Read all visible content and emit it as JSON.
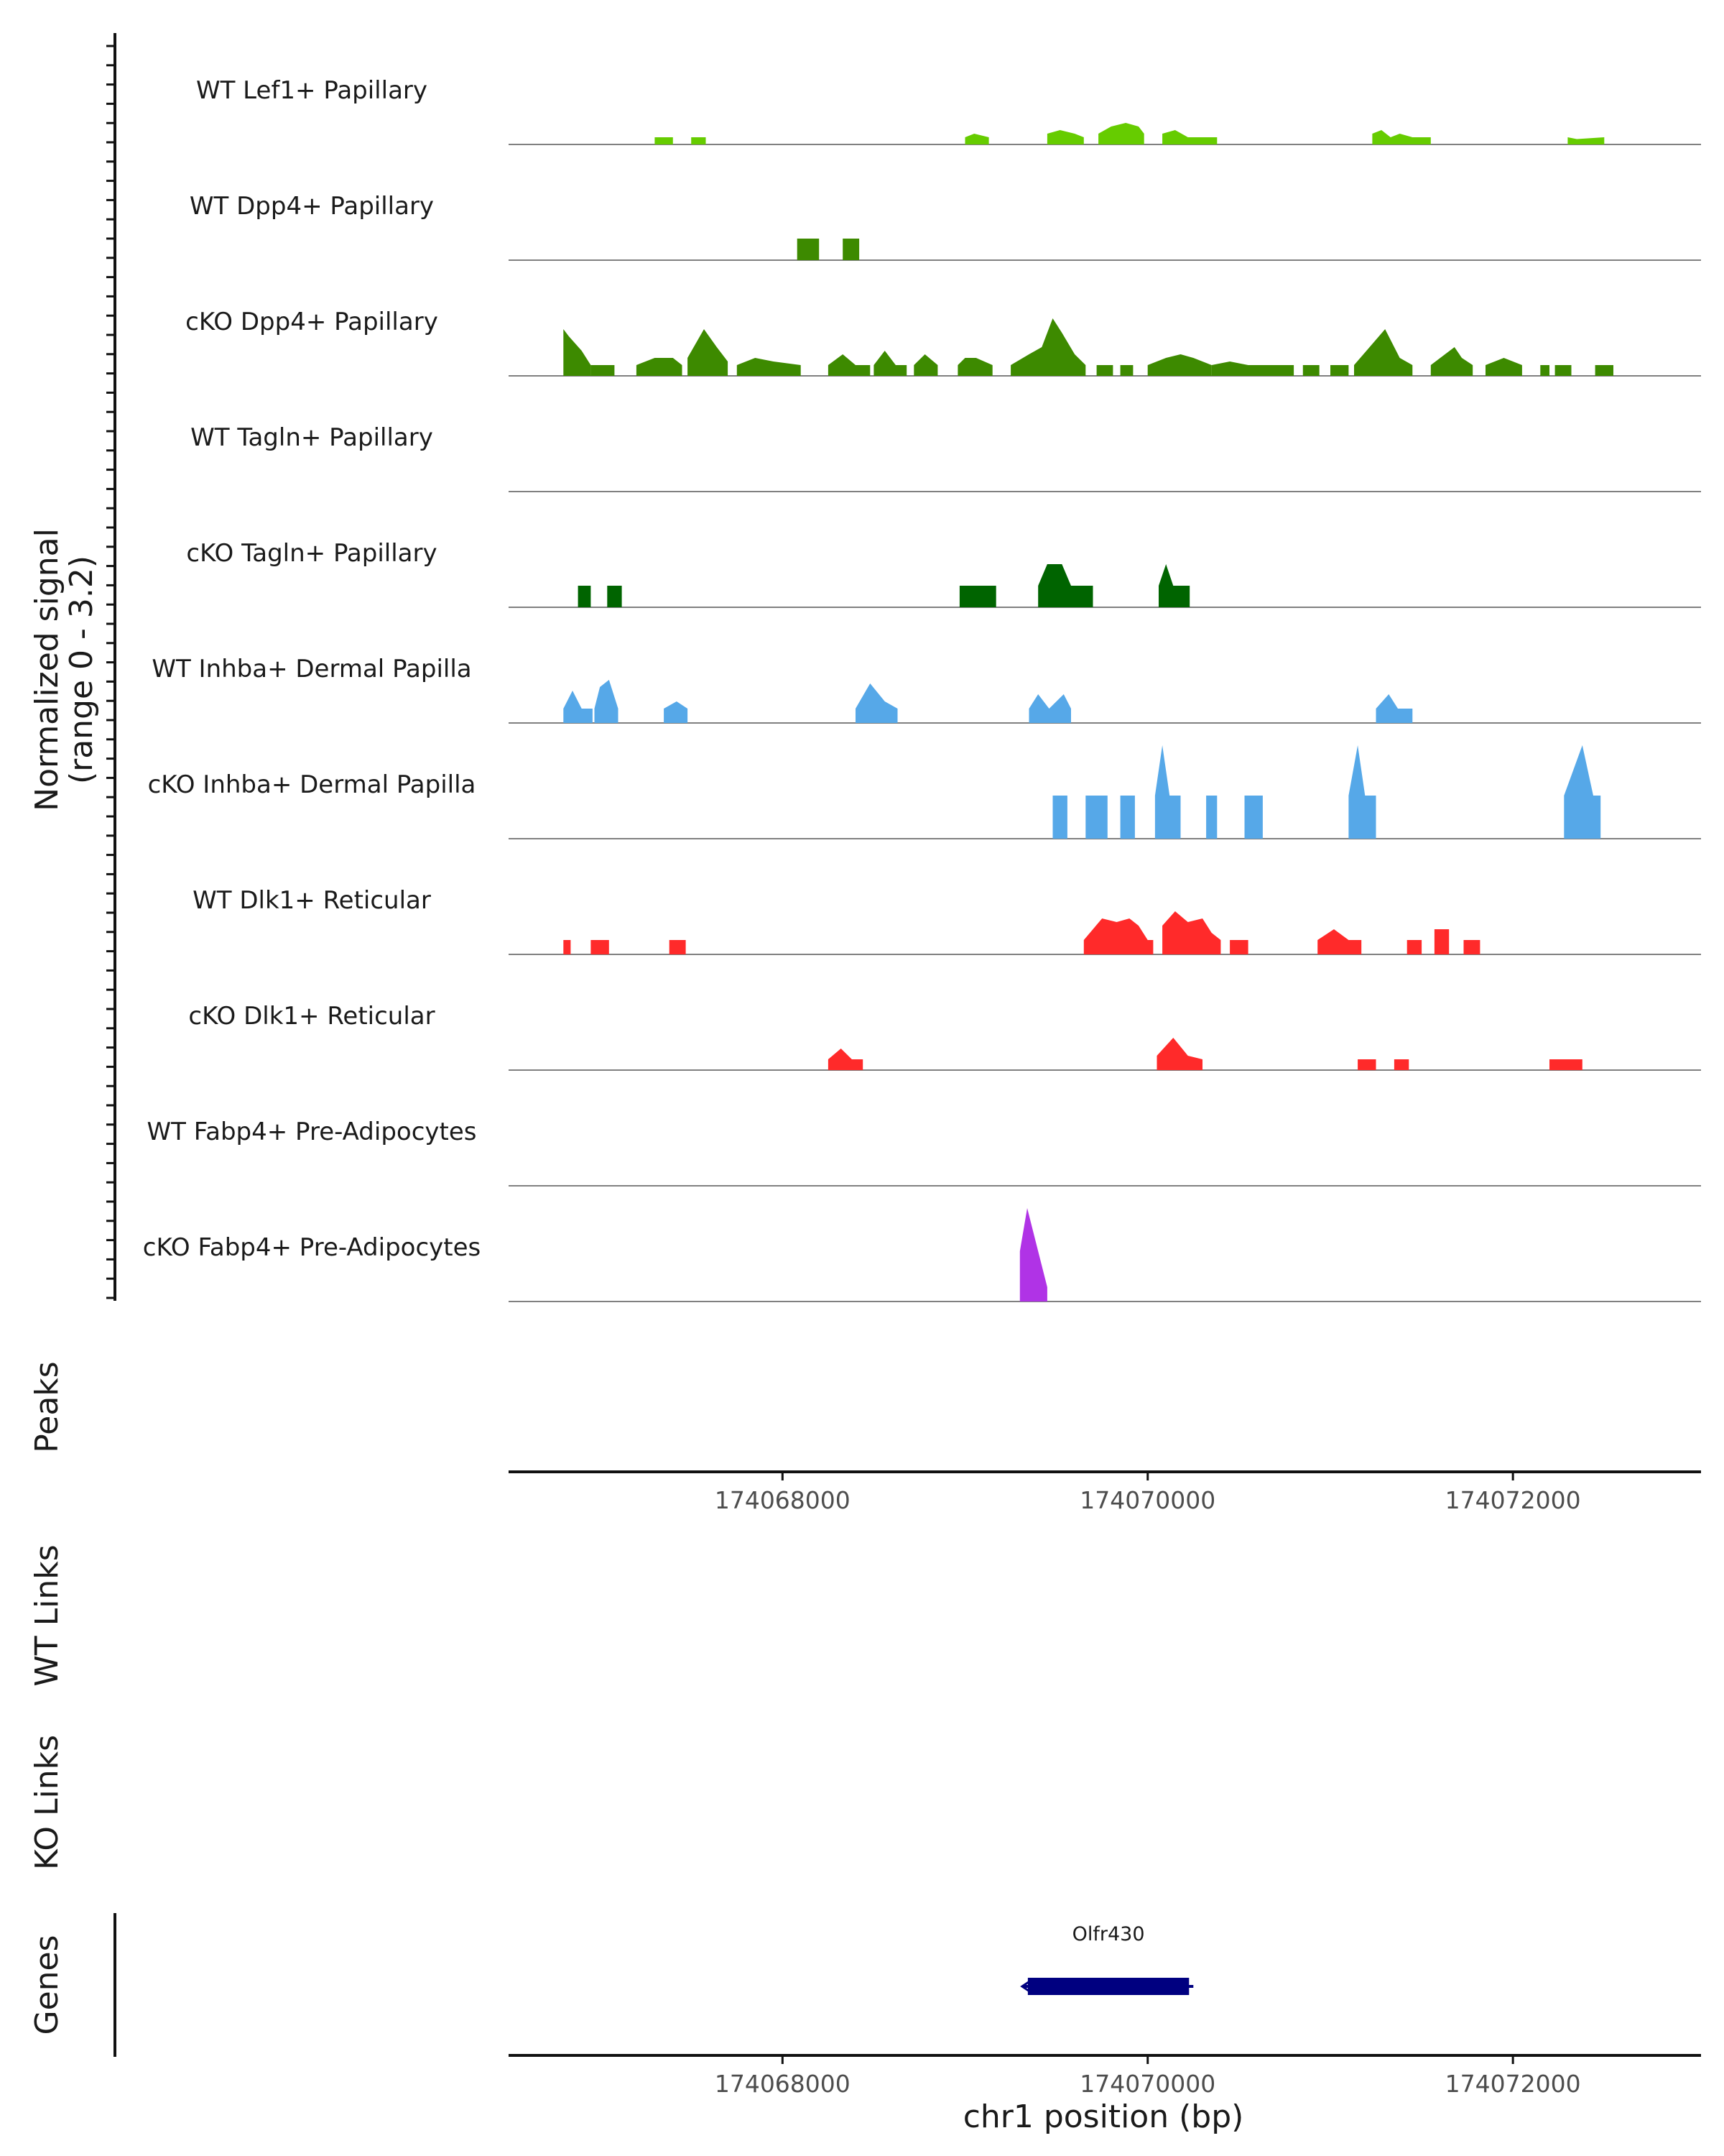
{
  "chart_data": {
    "type": "coverage",
    "xlim": [
      174066500,
      174073030
    ],
    "coverage_ylabel": [
      "Normalized signal",
      "(range 0 - 3.2)"
    ],
    "ylim": [
      0,
      3.2
    ],
    "tracks": [
      {
        "label": "WT Lef1+ Papillary",
        "color": "#66CC00",
        "segments": [
          [
            [
              174067300,
              0.2
            ],
            [
              174067400,
              0.2
            ]
          ],
          [
            [
              174067500,
              0.2
            ],
            [
              174067580,
              0.2
            ]
          ],
          [
            [
              174069000,
              0.2
            ],
            [
              174069050,
              0.3
            ],
            [
              174069130,
              0.2
            ]
          ],
          [
            [
              174069450,
              0.3
            ],
            [
              174069520,
              0.4
            ],
            [
              174069600,
              0.3
            ],
            [
              174069650,
              0.2
            ]
          ],
          [
            [
              174069730,
              0.3
            ],
            [
              174069800,
              0.5
            ],
            [
              174069880,
              0.6
            ],
            [
              174069950,
              0.5
            ],
            [
              174069980,
              0.3
            ]
          ],
          [
            [
              174070080,
              0.3
            ],
            [
              174070150,
              0.4
            ],
            [
              174070220,
              0.2
            ],
            [
              174070380,
              0.2
            ]
          ],
          [
            [
              174071230,
              0.3
            ],
            [
              174071280,
              0.4
            ],
            [
              174071330,
              0.2
            ],
            [
              174071380,
              0.3
            ],
            [
              174071450,
              0.2
            ],
            [
              174071550,
              0.2
            ]
          ],
          [
            [
              174072300,
              0.2
            ],
            [
              174072350,
              0.15
            ],
            [
              174072500,
              0.2
            ]
          ]
        ]
      },
      {
        "label": "WT Dpp4+ Papillary",
        "color": "#3D8A00",
        "segments": [
          [
            [
              174068080,
              0.6
            ],
            [
              174068200,
              0.6
            ]
          ],
          [
            [
              174068330,
              0.6
            ],
            [
              174068420,
              0.6
            ]
          ]
        ]
      },
      {
        "label": "cKO Dpp4+ Papillary",
        "color": "#3D8A00",
        "segments": [
          [
            [
              174066800,
              1.3
            ],
            [
              174066830,
              1.1
            ],
            [
              174066900,
              0.7
            ],
            [
              174066950,
              0.3
            ]
          ],
          [
            [
              174066950,
              0.3
            ],
            [
              174067080,
              0.3
            ]
          ],
          [
            [
              174067200,
              0.3
            ],
            [
              174067300,
              0.5
            ],
            [
              174067400,
              0.5
            ],
            [
              174067450,
              0.3
            ]
          ],
          [
            [
              174067480,
              0.5
            ],
            [
              174067570,
              1.3
            ],
            [
              174067640,
              0.8
            ],
            [
              174067700,
              0.4
            ]
          ],
          [
            [
              174067750,
              0.3
            ],
            [
              174067850,
              0.5
            ],
            [
              174067950,
              0.4
            ],
            [
              174068100,
              0.3
            ]
          ],
          [
            [
              174068250,
              0.3
            ],
            [
              174068330,
              0.6
            ],
            [
              174068400,
              0.3
            ],
            [
              174068480,
              0.3
            ]
          ],
          [
            [
              174068500,
              0.3
            ],
            [
              174068560,
              0.7
            ],
            [
              174068620,
              0.3
            ],
            [
              174068680,
              0.3
            ]
          ],
          [
            [
              174068720,
              0.3
            ],
            [
              174068780,
              0.6
            ],
            [
              174068850,
              0.3
            ]
          ],
          [
            [
              174068960,
              0.3
            ],
            [
              174069000,
              0.5
            ],
            [
              174069060,
              0.5
            ],
            [
              174069150,
              0.3
            ]
          ],
          [
            [
              174069250,
              0.3
            ],
            [
              174069350,
              0.6
            ],
            [
              174069420,
              0.8
            ],
            [
              174069480,
              1.6
            ],
            [
              174069530,
              1.2
            ],
            [
              174069600,
              0.6
            ],
            [
              174069660,
              0.3
            ]
          ],
          [
            [
              174069720,
              0.3
            ],
            [
              174069810,
              0.3
            ]
          ],
          [
            [
              174069850,
              0.3
            ],
            [
              174069920,
              0.3
            ]
          ],
          [
            [
              174070000,
              0.3
            ],
            [
              174070100,
              0.5
            ],
            [
              174070180,
              0.6
            ],
            [
              174070250,
              0.5
            ],
            [
              174070350,
              0.3
            ]
          ],
          [
            [
              174070350,
              0.3
            ],
            [
              174070450,
              0.4
            ],
            [
              174070550,
              0.3
            ],
            [
              174070700,
              0.3
            ],
            [
              174070800,
              0.3
            ]
          ],
          [
            [
              174070850,
              0.3
            ],
            [
              174070940,
              0.3
            ]
          ],
          [
            [
              174071000,
              0.3
            ],
            [
              174071100,
              0.3
            ]
          ],
          [
            [
              174071130,
              0.3
            ],
            [
              174071300,
              1.3
            ],
            [
              174071380,
              0.5
            ],
            [
              174071450,
              0.3
            ]
          ],
          [
            [
              174071550,
              0.3
            ],
            [
              174071680,
              0.8
            ],
            [
              174071720,
              0.5
            ],
            [
              174071780,
              0.3
            ]
          ],
          [
            [
              174071850,
              0.3
            ],
            [
              174071950,
              0.5
            ],
            [
              174072050,
              0.3
            ]
          ],
          [
            [
              174072150,
              0.3
            ],
            [
              174072200,
              0.3
            ]
          ],
          [
            [
              174072230,
              0.3
            ],
            [
              174072320,
              0.3
            ]
          ],
          [
            [
              174072450,
              0.3
            ],
            [
              174072550,
              0.3
            ]
          ]
        ]
      },
      {
        "label": "WT Tagln+ Papillary",
        "color": "#006400",
        "segments": []
      },
      {
        "label": "cKO Tagln+ Papillary",
        "color": "#006400",
        "segments": [
          [
            [
              174066880,
              0.6
            ],
            [
              174066950,
              0.6
            ]
          ],
          [
            [
              174067040,
              0.6
            ],
            [
              174067120,
              0.6
            ]
          ],
          [
            [
              174068970,
              0.6
            ],
            [
              174069170,
              0.6
            ]
          ],
          [
            [
              174069400,
              0.6
            ],
            [
              174069450,
              1.2
            ],
            [
              174069530,
              1.2
            ],
            [
              174069580,
              0.6
            ],
            [
              174069700,
              0.6
            ]
          ],
          [
            [
              174070060,
              0.6
            ],
            [
              174070100,
              1.2
            ],
            [
              174070140,
              0.6
            ],
            [
              174070230,
              0.6
            ]
          ]
        ]
      },
      {
        "label": "WT Inhba+ Dermal Papilla",
        "color": "#56A8E8",
        "segments": [
          [
            [
              174066800,
              0.4
            ],
            [
              174066850,
              0.9
            ],
            [
              174066900,
              0.4
            ],
            [
              174066960,
              0.4
            ]
          ],
          [
            [
              174066970,
              0.4
            ],
            [
              174067000,
              1.0
            ],
            [
              174067050,
              1.2
            ],
            [
              174067100,
              0.4
            ]
          ],
          [
            [
              174067350,
              0.4
            ],
            [
              174067420,
              0.6
            ],
            [
              174067480,
              0.4
            ]
          ],
          [
            [
              174068400,
              0.4
            ],
            [
              174068480,
              1.1
            ],
            [
              174068560,
              0.6
            ],
            [
              174068630,
              0.4
            ]
          ],
          [
            [
              174069350,
              0.4
            ],
            [
              174069400,
              0.8
            ],
            [
              174069460,
              0.4
            ],
            [
              174069540,
              0.8
            ],
            [
              174069580,
              0.4
            ]
          ],
          [
            [
              174071250,
              0.4
            ],
            [
              174071320,
              0.8
            ],
            [
              174071370,
              0.4
            ],
            [
              174071450,
              0.4
            ]
          ]
        ]
      },
      {
        "label": "cKO Inhba+ Dermal Papilla",
        "color": "#56A8E8",
        "segments": [
          [
            [
              174069480,
              1.2
            ],
            [
              174069560,
              1.2
            ]
          ],
          [
            [
              174069660,
              1.2
            ],
            [
              174069780,
              1.2
            ]
          ],
          [
            [
              174069850,
              1.2
            ],
            [
              174069930,
              1.2
            ]
          ],
          [
            [
              174070040,
              1.2
            ],
            [
              174070080,
              2.6
            ],
            [
              174070120,
              1.2
            ],
            [
              174070180,
              1.2
            ]
          ],
          [
            [
              174070320,
              1.2
            ],
            [
              174070380,
              1.2
            ]
          ],
          [
            [
              174070530,
              1.2
            ],
            [
              174070630,
              1.2
            ]
          ],
          [
            [
              174071100,
              1.2
            ],
            [
              174071150,
              2.6
            ],
            [
              174071190,
              1.2
            ],
            [
              174071250,
              1.2
            ]
          ],
          [
            [
              174072280,
              1.2
            ],
            [
              174072380,
              2.6
            ],
            [
              174072440,
              1.2
            ],
            [
              174072480,
              1.2
            ]
          ]
        ]
      },
      {
        "label": "WT Dlk1+ Reticular",
        "color": "#FF2A2A",
        "segments": [
          [
            [
              174066800,
              0.4
            ],
            [
              174066840,
              0.4
            ]
          ],
          [
            [
              174066950,
              0.4
            ],
            [
              174067050,
              0.4
            ]
          ],
          [
            [
              174067380,
              0.4
            ],
            [
              174067470,
              0.4
            ]
          ],
          [
            [
              174069650,
              0.4
            ],
            [
              174069750,
              1.0
            ],
            [
              174069830,
              0.9
            ],
            [
              174069900,
              1.0
            ],
            [
              174069950,
              0.8
            ],
            [
              174070000,
              0.4
            ],
            [
              174070030,
              0.4
            ]
          ],
          [
            [
              174070080,
              0.8
            ],
            [
              174070150,
              1.2
            ],
            [
              174070220,
              0.9
            ],
            [
              174070300,
              1.0
            ],
            [
              174070350,
              0.6
            ],
            [
              174070400,
              0.4
            ]
          ],
          [
            [
              174070450,
              0.4
            ],
            [
              174070550,
              0.4
            ]
          ],
          [
            [
              174070930,
              0.4
            ],
            [
              174071020,
              0.7
            ],
            [
              174071100,
              0.4
            ],
            [
              174071170,
              0.4
            ]
          ],
          [
            [
              174071420,
              0.4
            ],
            [
              174071500,
              0.4
            ]
          ],
          [
            [
              174071570,
              0.7
            ],
            [
              174071650,
              0.7
            ]
          ],
          [
            [
              174071730,
              0.4
            ],
            [
              174071820,
              0.4
            ]
          ]
        ]
      },
      {
        "label": "cKO Dlk1+ Reticular",
        "color": "#FF2A2A",
        "segments": [
          [
            [
              174068250,
              0.3
            ],
            [
              174068320,
              0.6
            ],
            [
              174068380,
              0.3
            ],
            [
              174068440,
              0.3
            ]
          ],
          [
            [
              174070050,
              0.4
            ],
            [
              174070140,
              0.9
            ],
            [
              174070220,
              0.4
            ],
            [
              174070300,
              0.3
            ]
          ],
          [
            [
              174071150,
              0.3
            ],
            [
              174071250,
              0.3
            ]
          ],
          [
            [
              174071350,
              0.3
            ],
            [
              174071430,
              0.3
            ]
          ],
          [
            [
              174072200,
              0.3
            ],
            [
              174072380,
              0.3
            ]
          ]
        ]
      },
      {
        "label": "WT Fabp4+ Pre-Adipocytes",
        "color": "#B033E6",
        "segments": []
      },
      {
        "label": "cKO Fabp4+ Pre-Adipocytes",
        "color": "#B033E6",
        "segments": [
          [
            [
              174069300,
              1.4
            ],
            [
              174069340,
              2.6
            ],
            [
              174069400,
              1.4
            ],
            [
              174069450,
              0.4
            ]
          ]
        ]
      }
    ],
    "panels": {
      "peaks": "Peaks",
      "wt_links": "WT Links",
      "ko_links": "KO Links",
      "genes": "Genes"
    },
    "xticks": [
      174068000,
      174070000,
      174072000
    ],
    "xtick_labels": [
      "174068000",
      "174070000",
      "174072000"
    ],
    "xlabel": "chr1 position (bp)",
    "genes": [
      {
        "name": "Olfr430",
        "start": 174069320,
        "end": 174070250,
        "strand": "-",
        "color": "#000080"
      }
    ]
  }
}
